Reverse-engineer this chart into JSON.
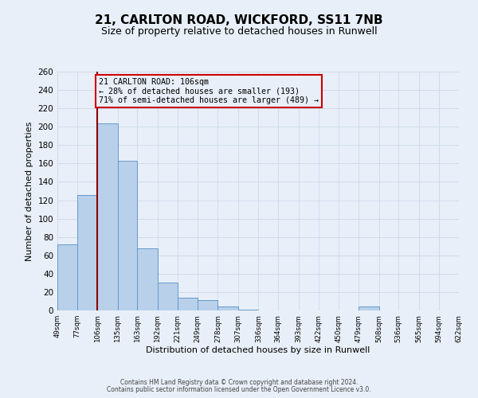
{
  "title1": "21, CARLTON ROAD, WICKFORD, SS11 7NB",
  "title2": "Size of property relative to detached houses in Runwell",
  "xlabel": "Distribution of detached houses by size in Runwell",
  "ylabel": "Number of detached properties",
  "bin_edges": [
    49,
    77,
    106,
    135,
    163,
    192,
    221,
    249,
    278,
    307,
    336,
    364,
    393,
    422,
    450,
    479,
    508,
    536,
    565,
    594,
    622
  ],
  "bar_heights": [
    72,
    126,
    204,
    163,
    68,
    30,
    14,
    11,
    4,
    1,
    0,
    0,
    0,
    0,
    0,
    4,
    0,
    0,
    0,
    0
  ],
  "bar_color": "#b8d0ea",
  "bar_edge_color": "#6699cc",
  "vline_x": 106,
  "vline_color": "#8b0000",
  "annotation_title": "21 CARLTON ROAD: 106sqm",
  "annotation_line1": "← 28% of detached houses are smaller (193)",
  "annotation_line2": "71% of semi-detached houses are larger (489) →",
  "annotation_box_color": "#cc0000",
  "ylim": [
    0,
    260
  ],
  "yticks": [
    0,
    20,
    40,
    60,
    80,
    100,
    120,
    140,
    160,
    180,
    200,
    220,
    240,
    260
  ],
  "xtick_labels": [
    "49sqm",
    "77sqm",
    "106sqm",
    "135sqm",
    "163sqm",
    "192sqm",
    "221sqm",
    "249sqm",
    "278sqm",
    "307sqm",
    "336sqm",
    "364sqm",
    "393sqm",
    "422sqm",
    "450sqm",
    "479sqm",
    "508sqm",
    "536sqm",
    "565sqm",
    "594sqm",
    "622sqm"
  ],
  "grid_color": "#ccd9e8",
  "bg_color": "#e8eff8",
  "footer1": "Contains HM Land Registry data © Crown copyright and database right 2024.",
  "footer2": "Contains public sector information licensed under the Open Government Licence v3.0."
}
